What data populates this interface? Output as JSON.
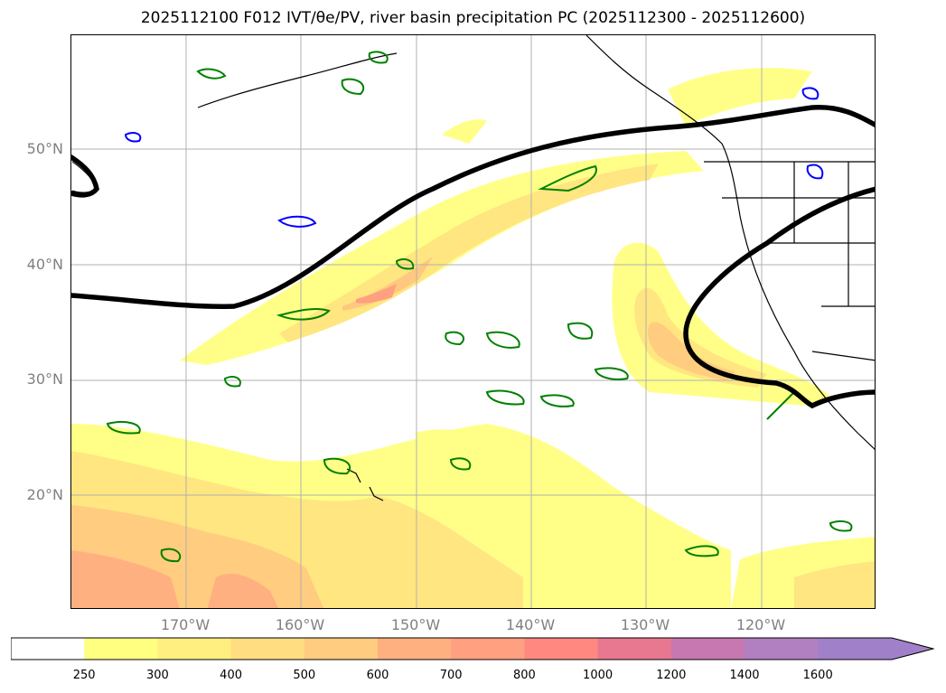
{
  "title": "2025112100 F012 IVT/θe/PV, river basin precipitation PC (2025112300 - 2025112600)",
  "axes": {
    "lat_labels": [
      "50°N",
      "40°N",
      "30°N",
      "20°N"
    ],
    "lon_labels": [
      "170°W",
      "160°W",
      "150°W",
      "140°W",
      "130°W",
      "120°W"
    ]
  },
  "colorbar": {
    "ticks": [
      "250",
      "300",
      "400",
      "500",
      "600",
      "700",
      "800",
      "1000",
      "1200",
      "1400",
      "1600"
    ],
    "colors": [
      "#ffffff",
      "#ffff80",
      "#ffee80",
      "#ffdd80",
      "#ffcc80",
      "#ffb080",
      "#ffa080",
      "#ff8880",
      "#e87890",
      "#c878b0",
      "#b080c0",
      "#a080c8"
    ]
  },
  "colors": {
    "grid": "#b0b0b0",
    "coast": "#000000",
    "pv_contour": "#000000",
    "theta_green": "#008000",
    "theta_blue": "#0000ff"
  }
}
